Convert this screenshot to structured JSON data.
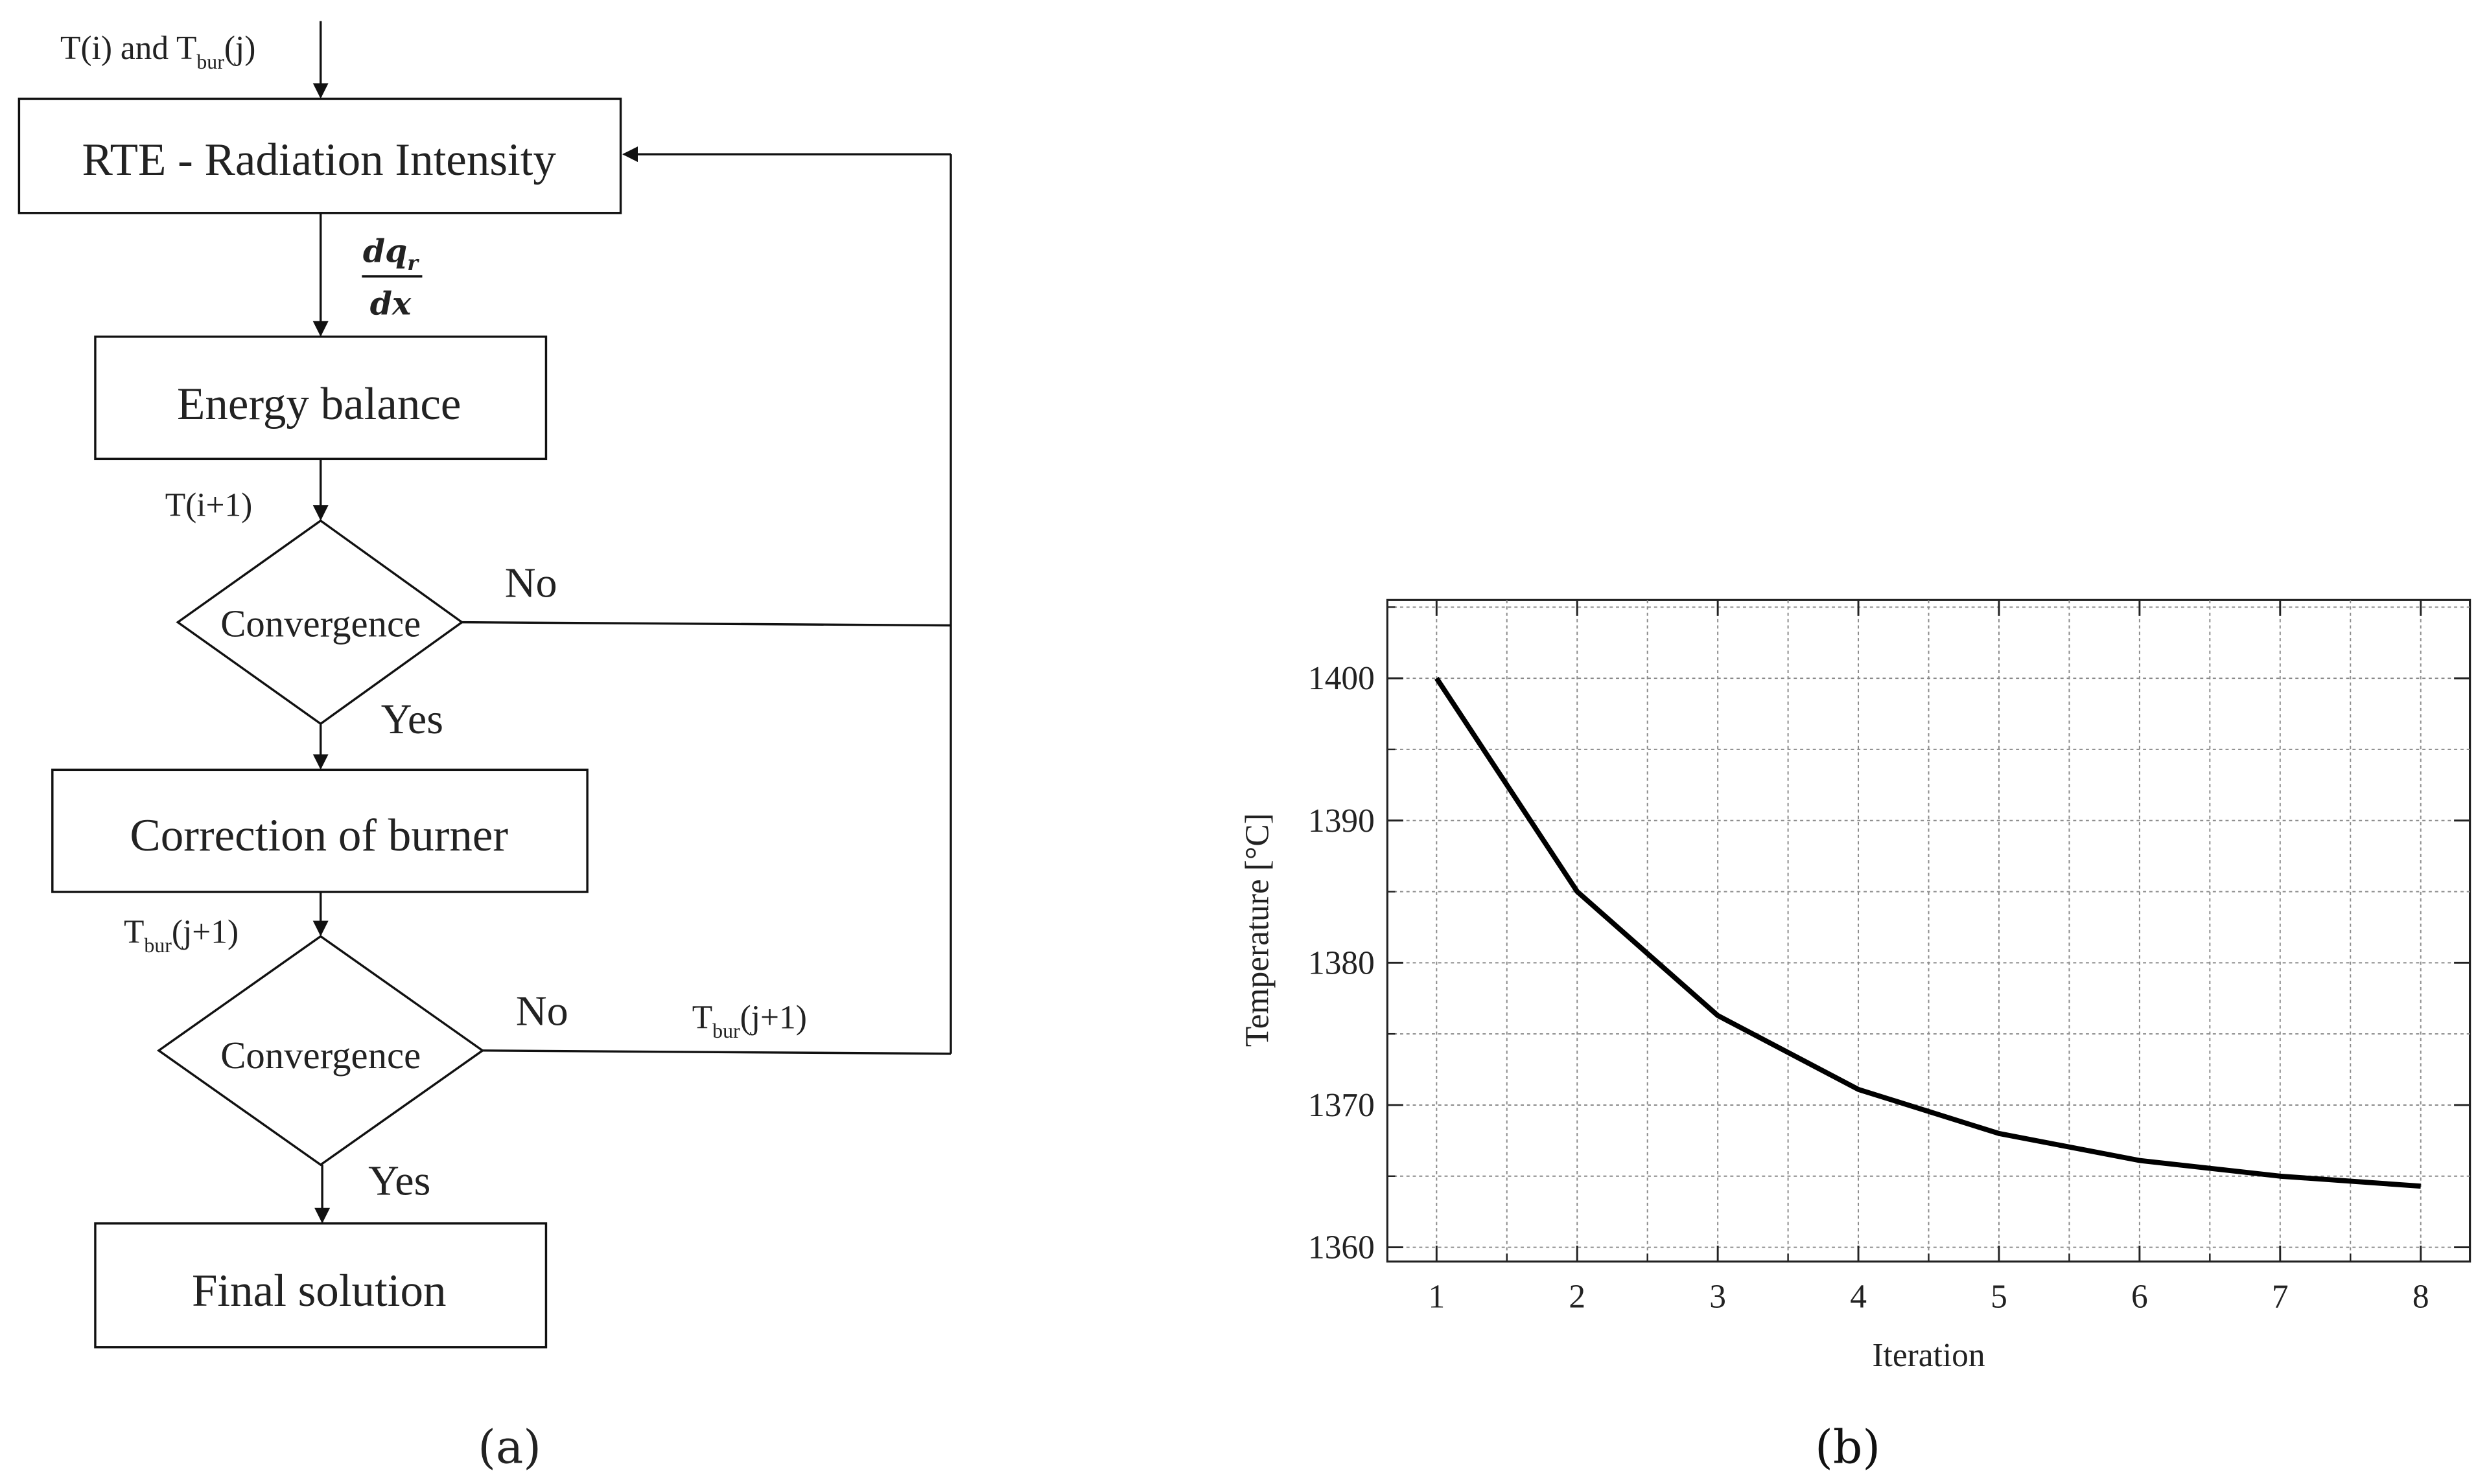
{
  "flowchart": {
    "input_label": {
      "main": "T(i) and T",
      "sub": "bur",
      "tail": "(j)"
    },
    "rte_box": "RTE - Radiation Intensity",
    "flux_label": {
      "num_main": "dq",
      "num_sub": "r",
      "den": "dx"
    },
    "energy_box": "Energy balance",
    "t_next_label": "T(i+1)",
    "convergence_1": "Convergence",
    "no_1": "No",
    "yes_1": "Yes",
    "correction_box": "Correction of burner",
    "tbur_label": {
      "main": "T",
      "sub": "bur",
      "tail": "(j+1)"
    },
    "convergence_2": "Convergence",
    "no_2": "No",
    "tbur_return_label": {
      "main": "T",
      "sub": "bur",
      "tail": "(j+1)"
    },
    "yes_2": "Yes",
    "final_box": "Final solution",
    "caption": "(a)"
  },
  "chart_data": {
    "type": "line",
    "xlabel": "Iteration",
    "ylabel": "Temperature [°C]",
    "xlim": [
      0.65,
      8.35
    ],
    "ylim": [
      1359,
      1405.5
    ],
    "x_ticks": [
      1,
      2,
      3,
      4,
      5,
      6,
      7,
      8
    ],
    "y_ticks": [
      1360,
      1370,
      1380,
      1390,
      1400
    ],
    "grid": true,
    "series": [
      {
        "x": [
          1,
          2,
          3,
          4,
          5,
          6,
          7,
          8
        ],
        "values": [
          1400,
          1385,
          1376.3,
          1371.1,
          1368,
          1366.1,
          1365,
          1364.3
        ],
        "color": "#000000"
      }
    ],
    "caption": "(b)"
  }
}
